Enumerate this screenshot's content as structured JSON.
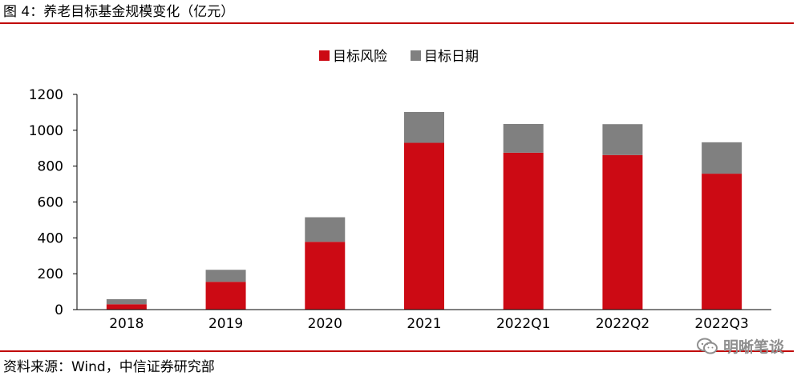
{
  "figure": {
    "title": "图 4：养老目标基金规模变化（亿元）",
    "source": "资料来源：Wind，中信证券研究部",
    "watermark": "明晰笔谈",
    "watermark_icon": "wechat-icon"
  },
  "colors": {
    "risk": "#cc0a14",
    "date": "#808080",
    "rule": "#c00000"
  },
  "chart_data": {
    "type": "bar",
    "stacked": true,
    "categories": [
      "2018",
      "2019",
      "2020",
      "2021",
      "2022Q1",
      "2022Q2",
      "2022Q3"
    ],
    "series": [
      {
        "name": "目标风险",
        "values": [
          30,
          155,
          378,
          930,
          875,
          862,
          758
        ]
      },
      {
        "name": "目标日期",
        "values": [
          28,
          67,
          137,
          172,
          160,
          172,
          175
        ]
      }
    ],
    "ylim": [
      0,
      1200
    ],
    "yticks": [
      0,
      200,
      400,
      600,
      800,
      1000,
      1200
    ],
    "legend_position": "top-center",
    "grid": false
  }
}
